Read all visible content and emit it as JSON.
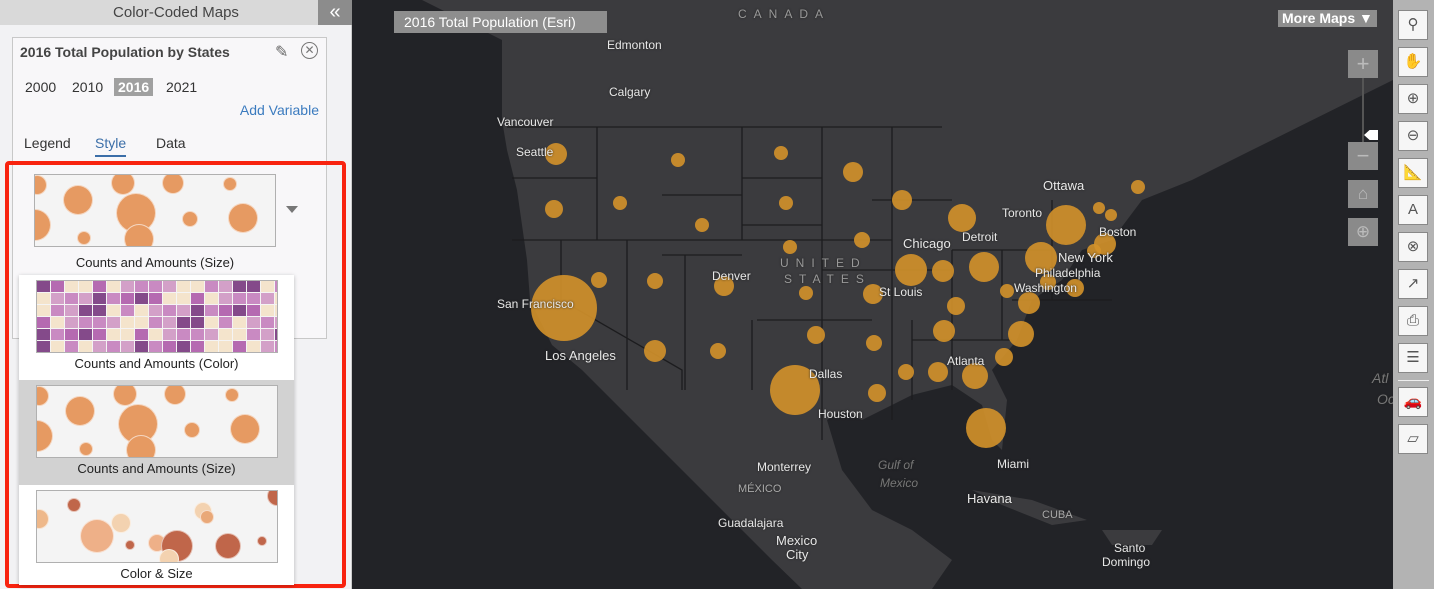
{
  "panel": {
    "title": "Color-Coded Maps",
    "collapse_icon": "double-chevron-left-icon"
  },
  "card": {
    "title": "2016 Total Population by States",
    "years": [
      "2000",
      "2010",
      "2016",
      "2021"
    ],
    "selected_year": "2016",
    "add_variable": "Add Variable",
    "tabs": [
      "Legend",
      "Style",
      "Data"
    ],
    "active_tab": "Style"
  },
  "style": {
    "current": "Counts and Amounts (Size)",
    "options": [
      {
        "label": "Counts and Amounts (Color)"
      },
      {
        "label": "Counts and Amounts (Size)",
        "highlighted": true
      },
      {
        "label": "Color & Size"
      }
    ]
  },
  "map": {
    "title": "2016 Total Population (Esri)",
    "more_maps": "More Maps",
    "bubble_color": "#d4922a",
    "labels": {
      "canada": "CANADA",
      "edmonton": "Edmonton",
      "calgary": "Calgary",
      "vancouver": "Vancouver",
      "seattle": "Seattle",
      "san_francisco": "San Francisco",
      "los_angeles": "Los Angeles",
      "denver": "Denver",
      "united": "UNITED",
      "states": "STATES",
      "chicago": "Chicago",
      "detroit": "Detroit",
      "toronto": "Toronto",
      "ottawa": "Ottawa",
      "boston": "Boston",
      "new_york": "New York",
      "philadelphia": "Philadelphia",
      "washington": "Washington",
      "st_louis": "St Louis",
      "atlanta": "Atlanta",
      "dallas": "Dallas",
      "houston": "Houston",
      "miami": "Miami",
      "monterrey": "Monterrey",
      "mexico_country": "MÉXICO",
      "guadalajara": "Guadalajara",
      "mexico_city_1": "Mexico",
      "mexico_city_2": "City",
      "havana": "Havana",
      "cuba": "CUBA",
      "gulf_1": "Gulf of",
      "gulf_2": "Mexico",
      "santo_1": "Santo",
      "santo_2": "Domingo",
      "atl_1": "Atl",
      "atl_2": "Oc"
    }
  },
  "zoom_controls": [
    "zoom-in-icon",
    "zoom-out-icon",
    "home-icon",
    "locate-icon"
  ],
  "toolbar": [
    "marker-icon",
    "pan-hand-icon",
    "zoom-in-magnifier-icon",
    "zoom-out-magnifier-icon",
    "measure-icon",
    "text-label-icon",
    "clear-icon",
    "share-icon",
    "pdf-export-icon",
    "list-icon",
    "traffic-icon",
    "note-icon"
  ]
}
